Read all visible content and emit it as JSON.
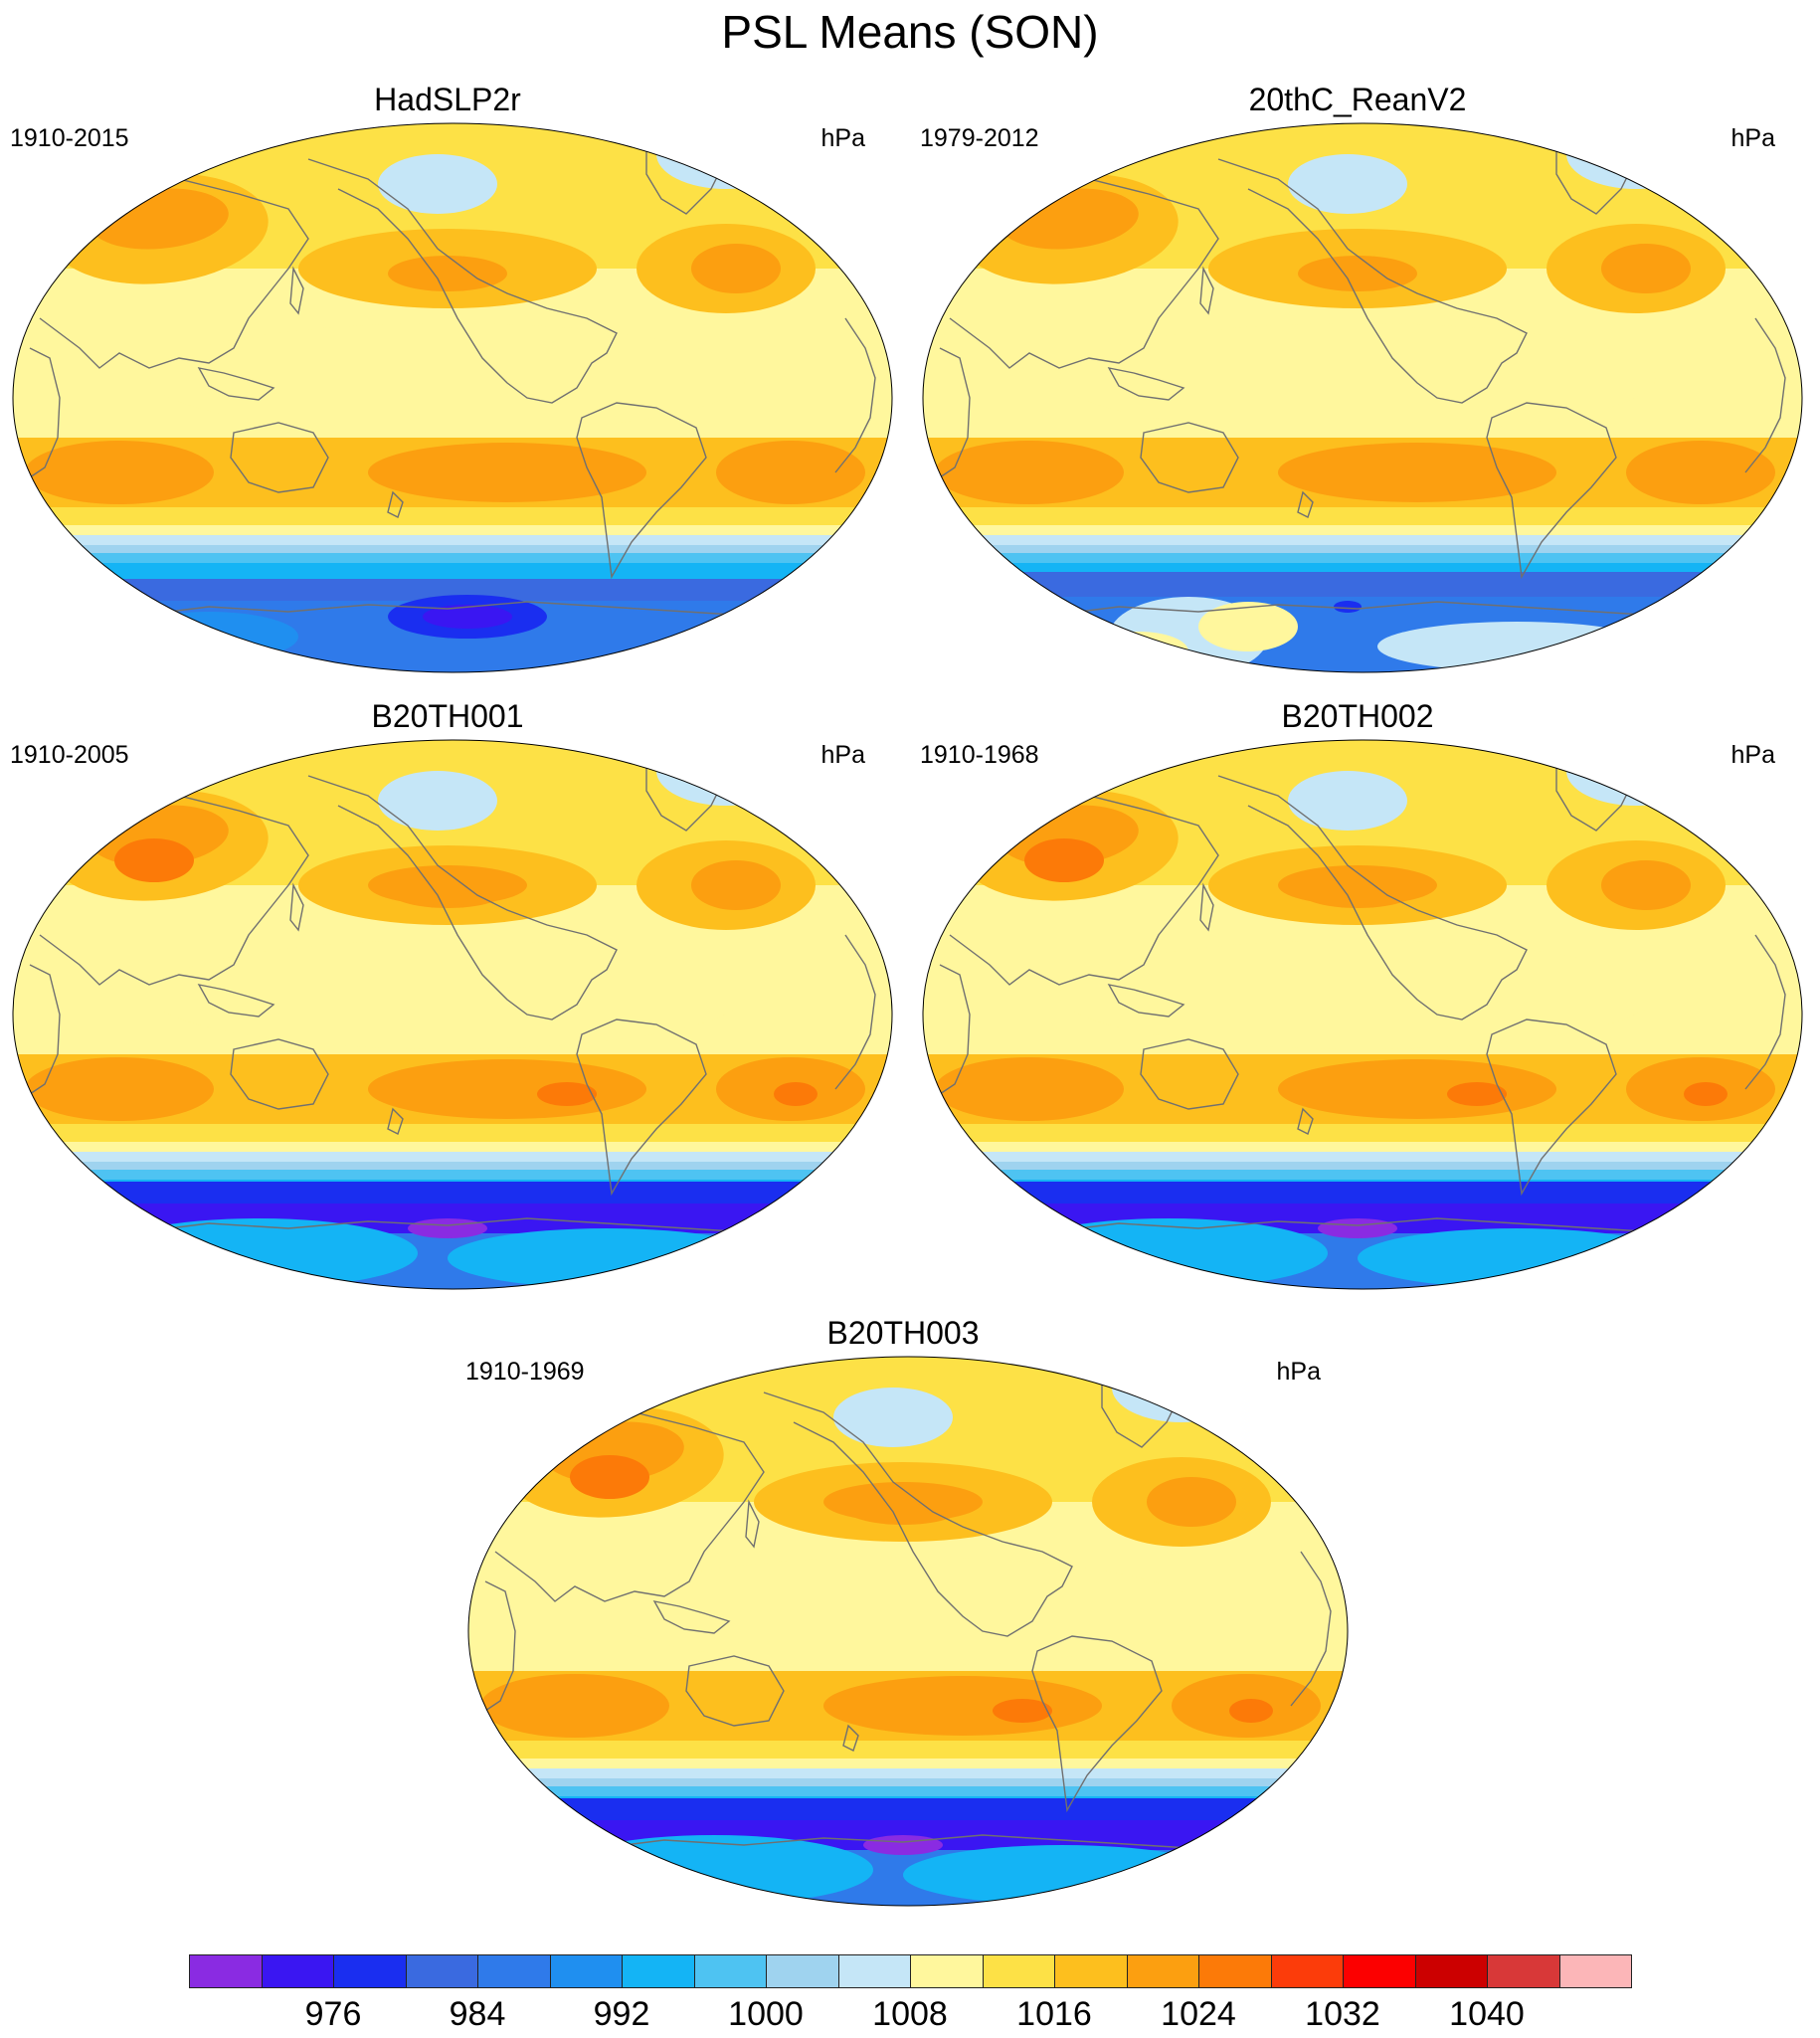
{
  "title": "PSL Means (SON)",
  "panels": [
    {
      "title": "HadSLP2r",
      "period": "1910-2015",
      "units": "hPa",
      "variant": "obs"
    },
    {
      "title": "20thC_ReanV2",
      "period": "1979-2012",
      "units": "hPa",
      "variant": "rean"
    },
    {
      "title": "B20TH001",
      "period": "1910-2005",
      "units": "hPa",
      "variant": "model"
    },
    {
      "title": "B20TH002",
      "period": "1910-1968",
      "units": "hPa",
      "variant": "model"
    },
    {
      "title": "B20TH003",
      "period": "1910-1969",
      "units": "hPa",
      "variant": "model"
    }
  ],
  "colorbar": {
    "colors": [
      "#8a2be2",
      "#3a16f2",
      "#1a2ef0",
      "#3a6ae0",
      "#2f7aea",
      "#1f8ff0",
      "#14b4f5",
      "#4ec3f2",
      "#9fd3ef",
      "#c5e6f7",
      "#fff79d",
      "#fde146",
      "#fdbf1e",
      "#fc9f10",
      "#fc7a08",
      "#fc3c0a",
      "#fc0000",
      "#cc0000",
      "#d83838",
      "#fcb6b8"
    ],
    "labels": [
      "976",
      "984",
      "992",
      "1000",
      "1008",
      "1016",
      "1024",
      "1032",
      "1040"
    ],
    "label_boundaries": [
      2,
      4,
      6,
      8,
      10,
      12,
      14,
      16,
      18
    ]
  },
  "map_palette": {
    "land_line": "#707070",
    "ice_blue": "#c5e6f7",
    "light_blue": "#9fd3ef",
    "pale_yellow": "#fff79d",
    "yellow": "#fde146",
    "gold": "#fdbf1e",
    "orange": "#fc9f10",
    "dark_orange": "#fc7a08",
    "sky": "#4ec3f2",
    "cyan": "#14b4f5",
    "azure": "#1f8ff0",
    "mid_blue": "#2f7aea",
    "deep_blue": "#3a6ae0",
    "navy": "#1a2ef0",
    "violet": "#3a16f2",
    "purple": "#8a2be2"
  }
}
